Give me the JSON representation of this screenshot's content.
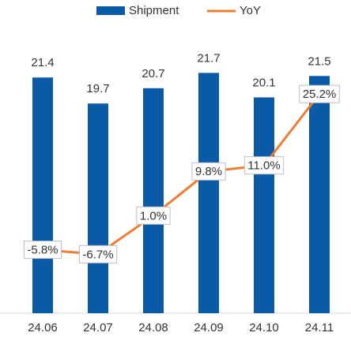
{
  "chart_data": {
    "type": "bar-line",
    "categories": [
      "24.06",
      "24.07",
      "24.08",
      "24.09",
      "24.10",
      "24.11"
    ],
    "series": [
      {
        "name": "Shipment",
        "color": "#0b5aa7",
        "values": [
          21.4,
          19.7,
          20.7,
          21.7,
          20.1,
          21.5
        ]
      },
      {
        "name": "YoY",
        "color": "#ed7d31",
        "axis": "y2",
        "values": [
          -5.8,
          -6.7,
          1.0,
          9.8,
          11.0,
          25.2
        ],
        "value_labels": [
          "-5.8%",
          "-6.7%",
          "1.0%",
          "9.8%",
          "11.0%",
          "25.2%"
        ]
      }
    ],
    "ylim": [
      6,
      26
    ],
    "y2lim": [
      -20,
      40
    ],
    "legend": "top"
  }
}
